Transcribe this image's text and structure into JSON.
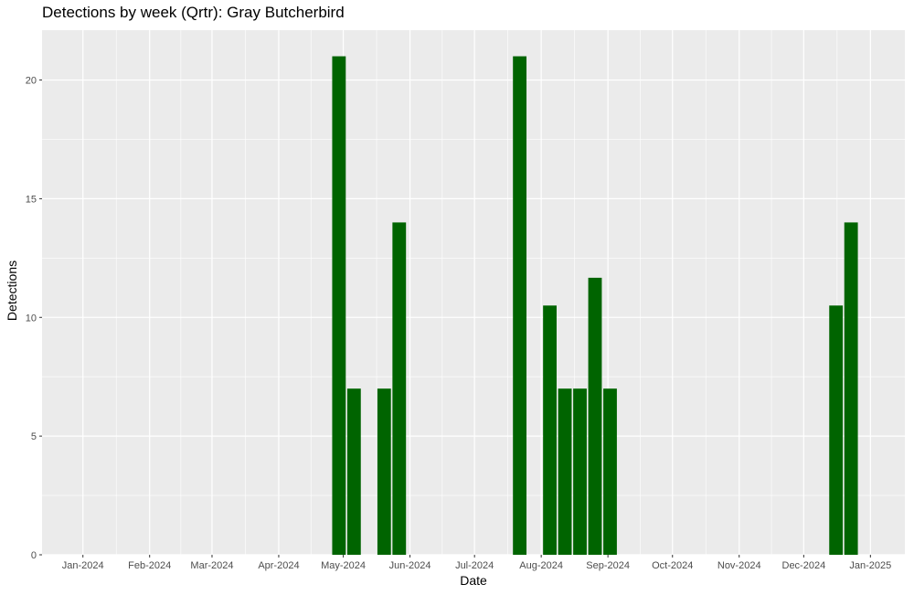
{
  "chart_data": {
    "type": "bar",
    "title": "Detections by week (Qrtr): Gray Butcherbird",
    "xlabel": "Date",
    "ylabel": "Detections",
    "ylim": [
      0,
      22.1
    ],
    "yticks": [
      0,
      5,
      10,
      15,
      20
    ],
    "xlim": [
      "2023-12-13",
      "2025-01-17"
    ],
    "xticks": [
      {
        "date": "2024-01-01",
        "label": "Jan-2024"
      },
      {
        "date": "2024-02-01",
        "label": "Feb-2024"
      },
      {
        "date": "2024-03-01",
        "label": "Mar-2024"
      },
      {
        "date": "2024-04-01",
        "label": "Apr-2024"
      },
      {
        "date": "2024-05-01",
        "label": "May-2024"
      },
      {
        "date": "2024-06-01",
        "label": "Jun-2024"
      },
      {
        "date": "2024-07-01",
        "label": "Jul-2024"
      },
      {
        "date": "2024-08-01",
        "label": "Aug-2024"
      },
      {
        "date": "2024-09-01",
        "label": "Sep-2024"
      },
      {
        "date": "2024-10-01",
        "label": "Oct-2024"
      },
      {
        "date": "2024-11-01",
        "label": "Nov-2024"
      },
      {
        "date": "2024-12-01",
        "label": "Dec-2024"
      },
      {
        "date": "2025-01-01",
        "label": "Jan-2025"
      }
    ],
    "bar_width_days": 6.3,
    "grid": true,
    "colors": {
      "bar": "#006400",
      "panel": "#ebebeb",
      "grid": "#ffffff"
    },
    "bars": [
      {
        "date": "2024-04-29",
        "value": 21
      },
      {
        "date": "2024-05-06",
        "value": 7
      },
      {
        "date": "2024-05-20",
        "value": 7
      },
      {
        "date": "2024-05-27",
        "value": 14
      },
      {
        "date": "2024-07-22",
        "value": 21
      },
      {
        "date": "2024-08-05",
        "value": 10.5
      },
      {
        "date": "2024-08-12",
        "value": 7
      },
      {
        "date": "2024-08-19",
        "value": 7
      },
      {
        "date": "2024-08-26",
        "value": 11.67
      },
      {
        "date": "2024-09-02",
        "value": 7
      },
      {
        "date": "2024-12-16",
        "value": 10.5
      },
      {
        "date": "2024-12-23",
        "value": 14
      }
    ]
  }
}
